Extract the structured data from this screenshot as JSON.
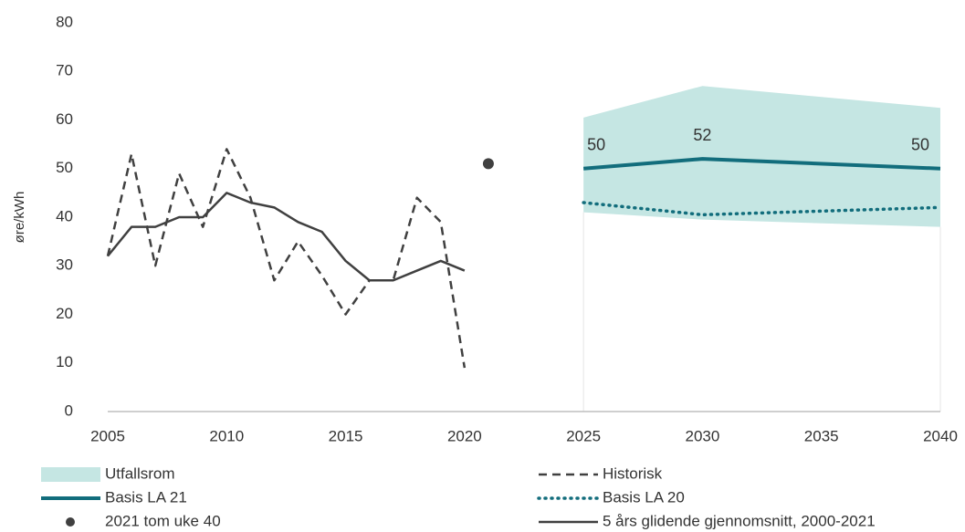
{
  "chart_data": {
    "type": "line",
    "y_label": "øre/kWh",
    "xlim": [
      2005,
      2040
    ],
    "ylim": [
      0,
      80
    ],
    "xticks": [
      2005,
      2010,
      2015,
      2020,
      2025,
      2030,
      2035,
      2040
    ],
    "yticks": [
      0,
      10,
      20,
      30,
      40,
      50,
      60,
      70,
      80
    ],
    "series": [
      {
        "name": "Utfallsrom",
        "style": "area",
        "color": "#c5e6e3",
        "x": [
          2025,
          2030,
          2040
        ],
        "upper": [
          60.5,
          67,
          62.5
        ],
        "lower": [
          41,
          39.5,
          38
        ]
      },
      {
        "name": "Historisk",
        "style": "dashed",
        "color": "#404040",
        "x": [
          2005,
          2006,
          2007,
          2008,
          2009,
          2010,
          2011,
          2012,
          2013,
          2014,
          2015,
          2016,
          2017,
          2018,
          2019,
          2020
        ],
        "values": [
          32,
          53,
          30,
          49,
          38,
          54,
          44,
          27,
          35,
          28,
          20,
          27,
          27,
          44,
          39,
          9
        ]
      },
      {
        "name": "Basis LA 21",
        "style": "solid-thick",
        "color": "#126d7c",
        "x": [
          2025,
          2030,
          2040
        ],
        "values": [
          50,
          52,
          50
        ],
        "labels_shown": true
      },
      {
        "name": "Basis LA 20",
        "style": "dotted",
        "color": "#126d7c",
        "x": [
          2025,
          2030,
          2040
        ],
        "values": [
          43,
          40.5,
          42
        ]
      },
      {
        "name": "2021 tom uke 40",
        "style": "point",
        "color": "#404040",
        "x": [
          2021
        ],
        "values": [
          51
        ]
      },
      {
        "name": "5 års glidende gjennomsnitt, 2000-2021",
        "style": "solid",
        "color": "#404040",
        "x": [
          2005,
          2006,
          2007,
          2008,
          2009,
          2010,
          2011,
          2012,
          2013,
          2014,
          2015,
          2016,
          2017,
          2018,
          2019,
          2020
        ],
        "values": [
          32,
          38,
          38,
          40,
          40,
          45,
          43,
          42,
          39,
          37,
          31,
          27,
          27,
          29,
          31,
          29
        ]
      }
    ]
  }
}
